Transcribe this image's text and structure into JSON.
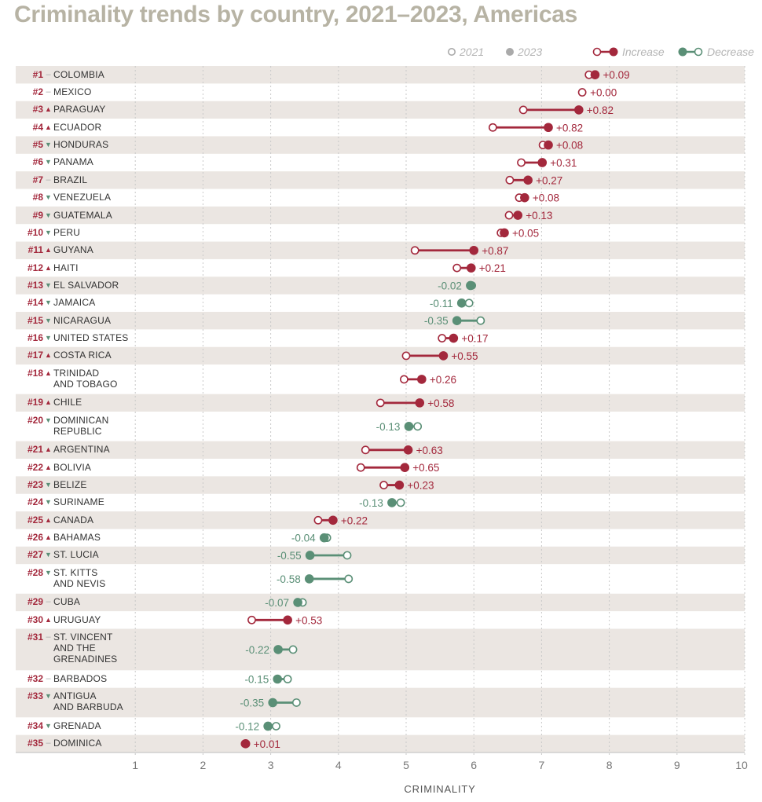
{
  "title": "Criminality trends by country, 2021–2023, Americas",
  "legend": {
    "y2021": "2021",
    "y2023": "2023",
    "increase": "Increase",
    "decrease": "Decrease"
  },
  "colors": {
    "increase": "#a3283c",
    "decrease": "#5a8f76",
    "stripe": "#ebe6e2",
    "rank": "#a3283c",
    "tri_up": "#a3283c",
    "tri_down": "#5a8f76",
    "title": "#b7b3a4"
  },
  "chart_data": {
    "type": "dumbbell",
    "title": "Criminality trends by country, 2021–2023, Americas",
    "xlabel": "CRIMINALITY",
    "xlim": [
      0,
      10
    ],
    "xticks": [
      "1",
      "2",
      "3",
      "4",
      "5",
      "6",
      "7",
      "8",
      "9",
      "10"
    ],
    "series_names": [
      "2021",
      "2023"
    ],
    "rows": [
      {
        "rank": "#1",
        "trend": "same",
        "name": [
          "COLOMBIA"
        ],
        "v2021": 7.7,
        "v2023": 7.79,
        "change": "+0.09"
      },
      {
        "rank": "#2",
        "trend": "same",
        "name": [
          "MEXICO"
        ],
        "v2021": 7.6,
        "v2023": 7.6,
        "change": "+0.00"
      },
      {
        "rank": "#3",
        "trend": "up",
        "name": [
          "PARAGUAY"
        ],
        "v2021": 6.73,
        "v2023": 7.55,
        "change": "+0.82"
      },
      {
        "rank": "#4",
        "trend": "up",
        "name": [
          "ECUADOR"
        ],
        "v2021": 6.28,
        "v2023": 7.1,
        "change": "+0.82"
      },
      {
        "rank": "#5",
        "trend": "down",
        "name": [
          "HONDURAS"
        ],
        "v2021": 7.02,
        "v2023": 7.1,
        "change": "+0.08"
      },
      {
        "rank": "#6",
        "trend": "down",
        "name": [
          "PANAMA"
        ],
        "v2021": 6.7,
        "v2023": 7.01,
        "change": "+0.31"
      },
      {
        "rank": "#7",
        "trend": "same",
        "name": [
          "BRAZIL"
        ],
        "v2021": 6.53,
        "v2023": 6.8,
        "change": "+0.27"
      },
      {
        "rank": "#8",
        "trend": "down",
        "name": [
          "VENEZUELA"
        ],
        "v2021": 6.67,
        "v2023": 6.75,
        "change": "+0.08"
      },
      {
        "rank": "#9",
        "trend": "down",
        "name": [
          "GUATEMALA"
        ],
        "v2021": 6.52,
        "v2023": 6.65,
        "change": "+0.13"
      },
      {
        "rank": "#10",
        "trend": "down",
        "name": [
          "PERU"
        ],
        "v2021": 6.4,
        "v2023": 6.45,
        "change": "+0.05"
      },
      {
        "rank": "#11",
        "trend": "up",
        "name": [
          "GUYANA"
        ],
        "v2021": 5.13,
        "v2023": 6.0,
        "change": "+0.87"
      },
      {
        "rank": "#12",
        "trend": "up",
        "name": [
          "HAITI"
        ],
        "v2021": 5.75,
        "v2023": 5.96,
        "change": "+0.21"
      },
      {
        "rank": "#13",
        "trend": "down",
        "name": [
          "EL SALVADOR"
        ],
        "v2021": 5.97,
        "v2023": 5.95,
        "change": "-0.02"
      },
      {
        "rank": "#14",
        "trend": "down",
        "name": [
          "JAMAICA"
        ],
        "v2021": 5.93,
        "v2023": 5.82,
        "change": "-0.11"
      },
      {
        "rank": "#15",
        "trend": "down",
        "name": [
          "NICARAGUA"
        ],
        "v2021": 6.1,
        "v2023": 5.75,
        "change": "-0.35"
      },
      {
        "rank": "#16",
        "trend": "down",
        "name": [
          "UNITED STATES"
        ],
        "v2021": 5.53,
        "v2023": 5.7,
        "change": "+0.17"
      },
      {
        "rank": "#17",
        "trend": "up",
        "name": [
          "COSTA RICA"
        ],
        "v2021": 5.0,
        "v2023": 5.55,
        "change": "+0.55"
      },
      {
        "rank": "#18",
        "trend": "up",
        "name": [
          "TRINIDAD",
          "AND TOBAGO"
        ],
        "v2021": 4.97,
        "v2023": 5.23,
        "change": "+0.26"
      },
      {
        "rank": "#19",
        "trend": "up",
        "name": [
          "CHILE"
        ],
        "v2021": 4.62,
        "v2023": 5.2,
        "change": "+0.58"
      },
      {
        "rank": "#20",
        "trend": "down",
        "name": [
          "DOMINICAN",
          "REPUBLIC"
        ],
        "v2021": 5.17,
        "v2023": 5.04,
        "change": "-0.13"
      },
      {
        "rank": "#21",
        "trend": "up",
        "name": [
          "ARGENTINA"
        ],
        "v2021": 4.4,
        "v2023": 5.03,
        "change": "+0.63"
      },
      {
        "rank": "#22",
        "trend": "up",
        "name": [
          "BOLIVIA"
        ],
        "v2021": 4.33,
        "v2023": 4.98,
        "change": "+0.65"
      },
      {
        "rank": "#23",
        "trend": "down",
        "name": [
          "BELIZE"
        ],
        "v2021": 4.67,
        "v2023": 4.9,
        "change": "+0.23"
      },
      {
        "rank": "#24",
        "trend": "down",
        "name": [
          "SURINAME"
        ],
        "v2021": 4.92,
        "v2023": 4.79,
        "change": "-0.13"
      },
      {
        "rank": "#25",
        "trend": "up",
        "name": [
          "CANADA"
        ],
        "v2021": 3.7,
        "v2023": 3.92,
        "change": "+0.22"
      },
      {
        "rank": "#26",
        "trend": "up",
        "name": [
          "BAHAMAS"
        ],
        "v2021": 3.83,
        "v2023": 3.79,
        "change": "-0.04"
      },
      {
        "rank": "#27",
        "trend": "down",
        "name": [
          "ST. LUCIA"
        ],
        "v2021": 4.13,
        "v2023": 3.58,
        "change": "-0.55"
      },
      {
        "rank": "#28",
        "trend": "down",
        "name": [
          "ST. KITTS",
          "AND NEVIS"
        ],
        "v2021": 4.15,
        "v2023": 3.57,
        "change": "-0.58"
      },
      {
        "rank": "#29",
        "trend": "same",
        "name": [
          "CUBA"
        ],
        "v2021": 3.47,
        "v2023": 3.4,
        "change": "-0.07"
      },
      {
        "rank": "#30",
        "trend": "up",
        "name": [
          "URUGUAY"
        ],
        "v2021": 2.72,
        "v2023": 3.25,
        "change": "+0.53"
      },
      {
        "rank": "#31",
        "trend": "same",
        "name": [
          "ST. VINCENT",
          "AND THE",
          "GRENADINES"
        ],
        "v2021": 3.33,
        "v2023": 3.11,
        "change": "-0.22"
      },
      {
        "rank": "#32",
        "trend": "same",
        "name": [
          "BARBADOS"
        ],
        "v2021": 3.25,
        "v2023": 3.1,
        "change": "-0.15"
      },
      {
        "rank": "#33",
        "trend": "down",
        "name": [
          "ANTIGUA",
          "AND BARBUDA"
        ],
        "v2021": 3.38,
        "v2023": 3.03,
        "change": "-0.35"
      },
      {
        "rank": "#34",
        "trend": "down",
        "name": [
          "GRENADA"
        ],
        "v2021": 3.08,
        "v2023": 2.96,
        "change": "-0.12"
      },
      {
        "rank": "#35",
        "trend": "same",
        "name": [
          "DOMINICA"
        ],
        "v2021": 2.62,
        "v2023": 2.63,
        "change": "+0.01"
      }
    ]
  }
}
